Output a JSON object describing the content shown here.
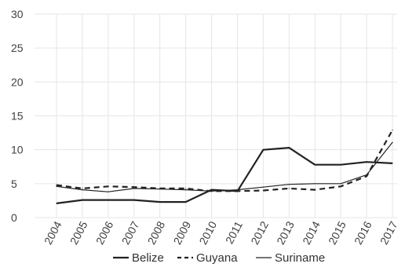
{
  "chart_data": {
    "type": "line",
    "title": "",
    "xlabel": "",
    "ylabel": "",
    "x": [
      "2004",
      "2005",
      "2006",
      "2007",
      "2008",
      "2009",
      "2010",
      "2011",
      "2012",
      "2013",
      "2014",
      "2015",
      "2016",
      "2017"
    ],
    "ylim": [
      0,
      30
    ],
    "yticks": [
      "0",
      "5",
      "10",
      "15",
      "20",
      "25",
      "30"
    ],
    "grid": true,
    "legend_position": "bottom",
    "series": [
      {
        "name": "Belize",
        "style": "solid-thick",
        "color": "#222222",
        "values": [
          2.1,
          2.6,
          2.6,
          2.6,
          2.3,
          2.3,
          4.1,
          3.9,
          10.0,
          10.3,
          7.8,
          7.8,
          8.2,
          8.0
        ]
      },
      {
        "name": "Guyana",
        "style": "dashed",
        "color": "#222222",
        "values": [
          4.8,
          4.3,
          4.6,
          4.5,
          4.3,
          4.3,
          3.9,
          3.9,
          4.0,
          4.3,
          4.1,
          4.6,
          6.1,
          12.9
        ]
      },
      {
        "name": "Suriname",
        "style": "solid-thin",
        "color": "#222222",
        "values": [
          4.6,
          4.1,
          3.8,
          4.3,
          4.2,
          4.1,
          3.9,
          4.1,
          4.5,
          4.9,
          5.0,
          5.0,
          6.3,
          11.1
        ]
      }
    ]
  }
}
